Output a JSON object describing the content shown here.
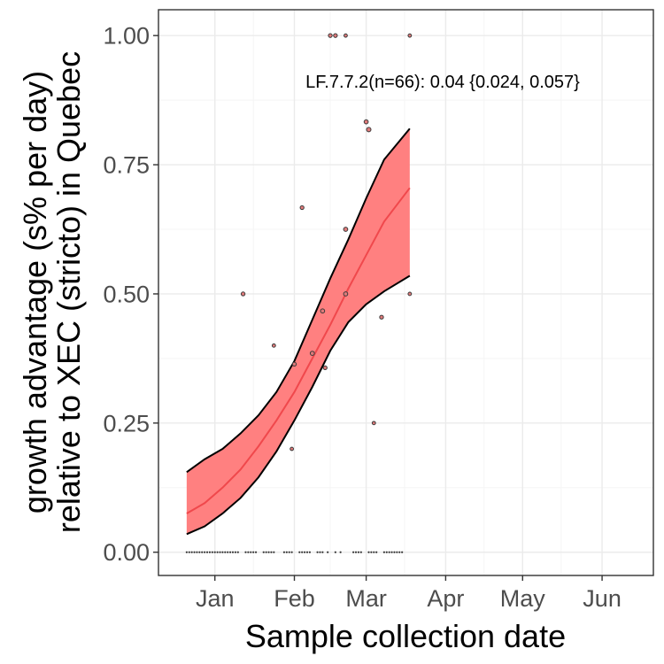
{
  "chart_data": {
    "type": "scatter",
    "title": "",
    "xlabel": "Sample collection date",
    "ylabel_line1": "growth advantage (s% per day)",
    "ylabel_line2": "relative to XEC (stricto) in Quebec",
    "ylim": [
      -0.045,
      1.05
    ],
    "xlim": [
      "2024-12-10",
      "2025-06-21"
    ],
    "grid": true,
    "x_ticks": [
      {
        "date": "2025-01-01",
        "label": "Jan"
      },
      {
        "date": "2025-02-01",
        "label": "Feb"
      },
      {
        "date": "2025-03-01",
        "label": "Mar"
      },
      {
        "date": "2025-04-01",
        "label": "Apr"
      },
      {
        "date": "2025-05-01",
        "label": "May"
      },
      {
        "date": "2025-06-01",
        "label": "Jun"
      }
    ],
    "y_ticks": [
      {
        "value": 0.0,
        "label": "0.00"
      },
      {
        "value": 0.25,
        "label": "0.25"
      },
      {
        "value": 0.5,
        "label": "0.50"
      },
      {
        "value": 0.75,
        "label": "0.75"
      },
      {
        "value": 1.0,
        "label": "1.00"
      }
    ],
    "annotation": "LF.7.7.2(n=66): 0.04 {0.024, 0.057}",
    "colors": {
      "band_fill": "#ff8080",
      "fit_line": "#f0484c",
      "band_edge": "#000000",
      "point_fill": "#e07a7a",
      "point_stroke": "#3a3a3a",
      "grid_major": "#ebebeb",
      "grid_minor": "#f5f5f5",
      "panel_border": "#333333"
    },
    "series": [
      {
        "type": "fit_band",
        "x": [
          "2024-12-21",
          "2024-12-28",
          "2025-01-04",
          "2025-01-11",
          "2025-01-18",
          "2025-01-25",
          "2025-02-01",
          "2025-02-08",
          "2025-02-15",
          "2025-02-22",
          "2025-03-01",
          "2025-03-08",
          "2025-03-18"
        ],
        "fit": [
          0.075,
          0.095,
          0.125,
          0.16,
          0.205,
          0.255,
          0.31,
          0.375,
          0.44,
          0.51,
          0.575,
          0.64,
          0.705
        ],
        "lower": [
          0.035,
          0.05,
          0.075,
          0.105,
          0.145,
          0.195,
          0.255,
          0.32,
          0.39,
          0.445,
          0.48,
          0.505,
          0.535
        ],
        "upper": [
          0.155,
          0.18,
          0.2,
          0.23,
          0.265,
          0.31,
          0.37,
          0.45,
          0.53,
          0.605,
          0.685,
          0.76,
          0.82
        ]
      },
      {
        "type": "points",
        "points": [
          {
            "x": "2025-01-12",
            "y": 0.5,
            "n": 2
          },
          {
            "x": "2025-01-24",
            "y": 0.4,
            "n": 1
          },
          {
            "x": "2025-01-31",
            "y": 0.2,
            "n": 1
          },
          {
            "x": "2025-02-01",
            "y": 0.364,
            "n": 2
          },
          {
            "x": "2025-02-04",
            "y": 0.667,
            "n": 2
          },
          {
            "x": "2025-02-08",
            "y": 0.385,
            "n": 3
          },
          {
            "x": "2025-02-12",
            "y": 0.467,
            "n": 3
          },
          {
            "x": "2025-02-13",
            "y": 0.357,
            "n": 2
          },
          {
            "x": "2025-02-15",
            "y": 1.0,
            "n": 2
          },
          {
            "x": "2025-02-17",
            "y": 1.0,
            "n": 2
          },
          {
            "x": "2025-02-21",
            "y": 0.5,
            "n": 3
          },
          {
            "x": "2025-02-21",
            "y": 0.625,
            "n": 3
          },
          {
            "x": "2025-02-21",
            "y": 1.0,
            "n": 1
          },
          {
            "x": "2025-03-01",
            "y": 0.833,
            "n": 3
          },
          {
            "x": "2025-03-02",
            "y": 0.818,
            "n": 4
          },
          {
            "x": "2025-03-04",
            "y": 0.25,
            "n": 1
          },
          {
            "x": "2025-03-07",
            "y": 0.455,
            "n": 2
          },
          {
            "x": "2025-03-18",
            "y": 1.0,
            "n": 1
          },
          {
            "x": "2025-03-18",
            "y": 0.5,
            "n": 1
          }
        ]
      },
      {
        "type": "zero_points",
        "y": 0.0,
        "x": [
          "2024-12-21",
          "2024-12-22",
          "2024-12-23",
          "2024-12-24",
          "2024-12-25",
          "2024-12-26",
          "2024-12-27",
          "2024-12-28",
          "2024-12-29",
          "2024-12-30",
          "2024-12-31",
          "2025-01-01",
          "2025-01-02",
          "2025-01-03",
          "2025-01-04",
          "2025-01-05",
          "2025-01-06",
          "2025-01-07",
          "2025-01-08",
          "2025-01-09",
          "2025-01-10",
          "2025-01-13",
          "2025-01-14",
          "2025-01-15",
          "2025-01-16",
          "2025-01-17",
          "2025-01-20",
          "2025-01-21",
          "2025-01-22",
          "2025-01-23",
          "2025-01-24",
          "2025-01-28",
          "2025-01-29",
          "2025-01-30",
          "2025-01-31",
          "2025-02-03",
          "2025-02-04",
          "2025-02-05",
          "2025-02-06",
          "2025-02-07",
          "2025-02-10",
          "2025-02-11",
          "2025-02-12",
          "2025-02-14",
          "2025-02-17",
          "2025-02-19",
          "2025-02-24",
          "2025-02-25",
          "2025-02-26",
          "2025-02-27",
          "2025-03-02",
          "2025-03-03",
          "2025-03-04",
          "2025-03-05",
          "2025-03-08",
          "2025-03-09",
          "2025-03-10",
          "2025-03-11",
          "2025-03-12",
          "2025-03-13",
          "2025-03-14",
          "2025-03-15"
        ]
      }
    ]
  }
}
